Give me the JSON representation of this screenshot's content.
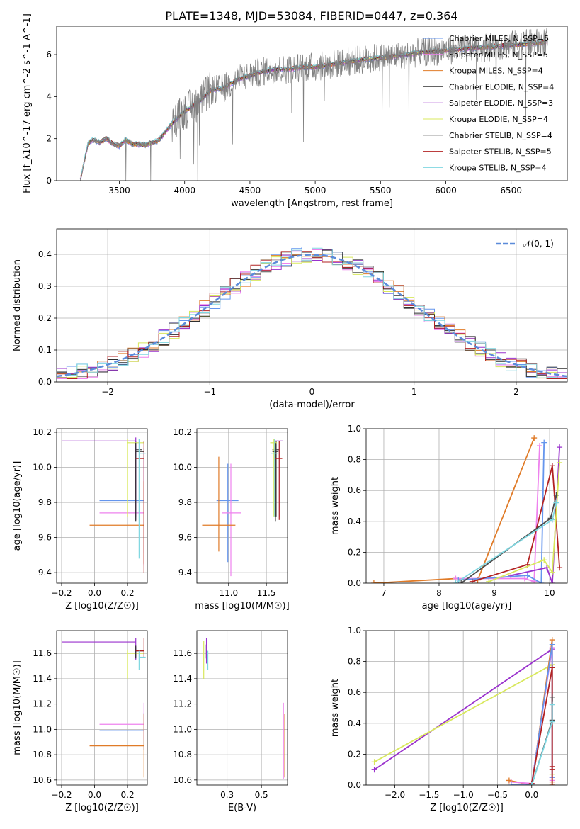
{
  "figure": {
    "title": "PLATE=1348, MJD=53084, FIBERID=0447, z=0.364"
  },
  "chart_data": [
    {
      "id": "spectrum",
      "type": "line",
      "xlabel": "wavelength [Angstrom, rest frame]",
      "ylabel": "Flux [f_λ10^-17 erg cm^-2 s^-1 A^-1]",
      "xlim": [
        3020,
        6930
      ],
      "ylim": [
        0,
        7.35
      ],
      "xticks": [
        3500,
        4000,
        4500,
        5000,
        5500,
        6000,
        6500
      ],
      "yticks": [
        0,
        2,
        4,
        6
      ],
      "data_color": "#808080",
      "data_envelope": {
        "x": [
          3200,
          3260,
          3300,
          3350,
          3400,
          3450,
          3500,
          3550,
          3600,
          3700,
          3800,
          3900,
          4000,
          4100,
          4200,
          4300,
          4400,
          4500,
          4600,
          4700,
          4800,
          4900,
          5000,
          5200,
          5400,
          5600,
          5800,
          6000,
          6200,
          6400,
          6600,
          6780
        ],
        "y": [
          0.0,
          1.75,
          1.95,
          1.8,
          2.0,
          1.75,
          1.65,
          1.95,
          1.75,
          1.7,
          1.9,
          2.7,
          3.3,
          3.7,
          4.3,
          4.4,
          4.8,
          5.0,
          5.2,
          5.3,
          5.3,
          5.4,
          5.4,
          5.6,
          5.8,
          5.9,
          6.1,
          6.2,
          6.3,
          6.4,
          6.5,
          6.6
        ]
      },
      "legend": {
        "location": "upper right",
        "items": [
          {
            "label": "Chabrier MILES, N_SSP=5",
            "color": "#6495ed"
          },
          {
            "label": "Salpeter MILES, N_SSP=5",
            "color": "#ee82ee"
          },
          {
            "label": "Kroupa MILES, N_SSP=4",
            "color": "#e07b28"
          },
          {
            "label": "Chabrier ELODIE, N_SSP=4",
            "color": "#4d4d4d"
          },
          {
            "label": "Salpeter ELODIE, N_SSP=3",
            "color": "#9a32cd"
          },
          {
            "label": "Kroupa ELODIE, N_SSP=4",
            "color": "#d8e85c"
          },
          {
            "label": "Chabrier STELIB, N_SSP=4",
            "color": "#2f2f2f"
          },
          {
            "label": "Salpeter STELIB, N_SSP=5",
            "color": "#b22222"
          },
          {
            "label": "Kroupa STELIB, N_SSP=4",
            "color": "#7ed6e0"
          }
        ]
      }
    },
    {
      "id": "residuals",
      "type": "line",
      "xlabel": "(data-model)/error",
      "ylabel": "Normed distribution",
      "xlim": [
        -2.5,
        2.5
      ],
      "ylim": [
        0,
        0.48
      ],
      "xticks": [
        -2,
        -1,
        0,
        1,
        2
      ],
      "yticks": [
        0.0,
        0.1,
        0.2,
        0.3,
        0.4
      ],
      "grid": true,
      "legend": {
        "location": "upper right",
        "items": [
          {
            "label": "𝒩(0, 1)",
            "color": "#5b8bd9",
            "dashed": true
          }
        ]
      },
      "reference_curve": "normal(0,1)",
      "hist_bin_width": 0.1,
      "hist_series_colors": [
        "#6495ed",
        "#ee82ee",
        "#e07b28",
        "#4d4d4d",
        "#9a32cd",
        "#d8e85c",
        "#2f2f2f",
        "#b22222",
        "#7ed6e0"
      ]
    },
    {
      "id": "age_vs_Z",
      "type": "scatter",
      "xlabel": "Z [log10(Z/Z☉)]",
      "ylabel": "age [log10(age/yr)]",
      "xlim": [
        -0.23,
        0.32
      ],
      "ylim": [
        9.34,
        10.22
      ],
      "xticks": [
        -0.2,
        0.0,
        0.2
      ],
      "yticks": [
        9.4,
        9.6,
        9.8,
        10.0,
        10.2
      ],
      "grid": true,
      "points": [
        {
          "x": 0.3,
          "y": 9.81,
          "xerr": [
            0.27,
            0.0
          ],
          "yerr": [
            0.3,
            0.3
          ],
          "color": "#6495ed"
        },
        {
          "x": 0.3,
          "y": 9.74,
          "xerr": [
            0.27,
            0.0
          ],
          "yerr": [
            0.3,
            0.3
          ],
          "color": "#ee82ee"
        },
        {
          "x": 0.3,
          "y": 9.67,
          "xerr": [
            0.33,
            0.0
          ],
          "yerr": [
            0.22,
            0.25
          ],
          "color": "#e07b28"
        },
        {
          "x": 0.25,
          "y": 10.1,
          "xerr": [
            0.0,
            0.04
          ],
          "yerr": [
            0.38,
            0.05
          ],
          "color": "#4d4d4d"
        },
        {
          "x": 0.25,
          "y": 10.15,
          "xerr": [
            0.45,
            0.0
          ],
          "yerr": [
            0.45,
            0.02
          ],
          "color": "#9a32cd"
        },
        {
          "x": 0.2,
          "y": 10.14,
          "xerr": [
            0.0,
            0.1
          ],
          "yerr": [
            0.42,
            0.02
          ],
          "color": "#d8e85c"
        },
        {
          "x": 0.25,
          "y": 10.09,
          "xerr": [
            0.0,
            0.05
          ],
          "yerr": [
            0.4,
            0.05
          ],
          "color": "#2f2f2f"
        },
        {
          "x": 0.3,
          "y": 10.05,
          "xerr": [
            0.05,
            0.0
          ],
          "yerr": [
            0.65,
            0.1
          ],
          "color": "#b22222"
        },
        {
          "x": 0.27,
          "y": 10.08,
          "xerr": [
            0.0,
            0.04
          ],
          "yerr": [
            0.6,
            0.08
          ],
          "color": "#7ed6e0"
        }
      ]
    },
    {
      "id": "age_vs_mass",
      "type": "scatter",
      "xlabel": "mass [log10(M/M☉)]",
      "ylabel": "",
      "xlim": [
        10.58,
        11.78
      ],
      "ylim": [
        9.34,
        10.22
      ],
      "xticks": [
        11.0,
        11.5
      ],
      "yticks": [
        9.4,
        9.6,
        9.8,
        10.0,
        10.2
      ],
      "grid": true,
      "points": [
        {
          "x": 10.99,
          "y": 9.81,
          "xerr": [
            0.15,
            0.14
          ],
          "yerr": [
            0.35,
            0.21
          ],
          "color": "#6495ed"
        },
        {
          "x": 11.03,
          "y": 9.74,
          "xerr": [
            0.12,
            0.14
          ],
          "yerr": [
            0.36,
            0.28
          ],
          "color": "#ee82ee"
        },
        {
          "x": 10.87,
          "y": 9.67,
          "xerr": [
            0.22,
            0.22
          ],
          "yerr": [
            0.15,
            0.39
          ],
          "color": "#e07b28"
        },
        {
          "x": 11.63,
          "y": 10.1,
          "xerr": [
            0.05,
            0.04
          ],
          "yerr": [
            0.38,
            0.05
          ],
          "color": "#4d4d4d"
        },
        {
          "x": 11.68,
          "y": 10.15,
          "xerr": [
            0.06,
            0.04
          ],
          "yerr": [
            0.43,
            0.0
          ],
          "color": "#9a32cd"
        },
        {
          "x": 11.6,
          "y": 10.14,
          "xerr": [
            0.05,
            0.04
          ],
          "yerr": [
            0.42,
            0.02
          ],
          "color": "#d8e85c"
        },
        {
          "x": 11.62,
          "y": 10.09,
          "xerr": [
            0.04,
            0.04
          ],
          "yerr": [
            0.4,
            0.05
          ],
          "color": "#2f2f2f"
        },
        {
          "x": 11.67,
          "y": 10.05,
          "xerr": [
            0.05,
            0.04
          ],
          "yerr": [
            0.35,
            0.1
          ],
          "color": "#b22222"
        },
        {
          "x": 11.61,
          "y": 10.08,
          "xerr": [
            0.05,
            0.04
          ],
          "yerr": [
            0.36,
            0.08
          ],
          "color": "#7ed6e0"
        }
      ]
    },
    {
      "id": "weight_vs_age",
      "type": "line",
      "xlabel": "age [log10(age/yr)]",
      "ylabel": "mass weight",
      "xlim": [
        6.68,
        10.32
      ],
      "ylim": [
        0,
        1.0
      ],
      "xticks": [
        7,
        8,
        9,
        10
      ],
      "yticks": [
        0.0,
        0.2,
        0.4,
        0.6,
        0.8,
        1.0
      ],
      "grid": true,
      "series": [
        {
          "color": "#e07b28",
          "x": [
            6.82,
            8.3,
            8.7,
            9.72
          ],
          "y": [
            0.0,
            0.03,
            0.02,
            0.94
          ]
        },
        {
          "color": "#ee82ee",
          "x": [
            8.3,
            9.55,
            9.72,
            9.82
          ],
          "y": [
            0.03,
            0.03,
            0.01,
            0.89
          ]
        },
        {
          "color": "#6495ed",
          "x": [
            8.35,
            9.6,
            9.85,
            9.9
          ],
          "y": [
            0.02,
            0.05,
            0.0,
            0.91
          ]
        },
        {
          "color": "#9a32cd",
          "x": [
            9.3,
            9.95,
            10.05,
            10.18
          ],
          "y": [
            0.05,
            0.1,
            0.0,
            0.88
          ]
        },
        {
          "color": "#b22222",
          "x": [
            8.6,
            9.6,
            10.05,
            10.18
          ],
          "y": [
            0.01,
            0.12,
            0.76,
            0.1
          ]
        },
        {
          "color": "#d8e85c",
          "x": [
            8.9,
            9.9,
            10.05,
            10.18
          ],
          "y": [
            0.01,
            0.15,
            0.07,
            0.78
          ]
        },
        {
          "color": "#4d4d4d",
          "x": [
            8.4,
            10.02,
            10.12
          ],
          "y": [
            0.0,
            0.42,
            0.57
          ]
        },
        {
          "color": "#7ed6e0",
          "x": [
            8.3,
            10.05,
            10.12
          ],
          "y": [
            0.0,
            0.41,
            0.52
          ]
        }
      ]
    },
    {
      "id": "mass_vs_Z",
      "type": "scatter",
      "xlabel": "Z [log10(Z/Z☉)]",
      "ylabel": "mass [log10(M/M☉)]",
      "xlim": [
        -0.23,
        0.32
      ],
      "ylim": [
        10.56,
        11.78
      ],
      "xticks": [
        -0.2,
        0.0,
        0.2
      ],
      "yticks": [
        10.6,
        10.8,
        11.0,
        11.2,
        11.4,
        11.6
      ],
      "grid": true,
      "points": [
        {
          "x": 0.3,
          "y": 10.99,
          "xerr": [
            0.27,
            0.0
          ],
          "yerr": [
            0.15,
            0.14
          ],
          "color": "#6495ed"
        },
        {
          "x": 0.3,
          "y": 11.04,
          "xerr": [
            0.27,
            0.0
          ],
          "yerr": [
            0.12,
            0.17
          ],
          "color": "#ee82ee"
        },
        {
          "x": 0.3,
          "y": 10.87,
          "xerr": [
            0.33,
            0.0
          ],
          "yerr": [
            0.25,
            0.25
          ],
          "color": "#e07b28"
        },
        {
          "x": 0.25,
          "y": 11.62,
          "xerr": [
            0.0,
            0.05
          ],
          "yerr": [
            0.05,
            0.03
          ],
          "color": "#4d4d4d"
        },
        {
          "x": 0.25,
          "y": 11.69,
          "xerr": [
            0.45,
            0.0
          ],
          "yerr": [
            0.14,
            0.03
          ],
          "color": "#9a32cd"
        },
        {
          "x": 0.2,
          "y": 11.6,
          "xerr": [
            0.0,
            0.1
          ],
          "yerr": [
            0.2,
            0.03
          ],
          "color": "#d8e85c"
        },
        {
          "x": 0.25,
          "y": 11.62,
          "xerr": [
            0.0,
            0.05
          ],
          "yerr": [
            0.06,
            0.04
          ],
          "color": "#2f2f2f"
        },
        {
          "x": 0.3,
          "y": 11.62,
          "xerr": [
            0.05,
            0.0
          ],
          "yerr": [
            0.05,
            0.1
          ],
          "color": "#b22222"
        },
        {
          "x": 0.27,
          "y": 11.57,
          "xerr": [
            0.0,
            0.04
          ],
          "yerr": [
            0.1,
            0.05
          ],
          "color": "#7ed6e0"
        }
      ]
    },
    {
      "id": "mass_vs_ebv",
      "type": "scatter",
      "xlabel": "E(B-V)",
      "ylabel": "",
      "xlim": [
        0.03,
        0.69
      ],
      "ylim": [
        10.56,
        11.78
      ],
      "xticks": [
        0.25,
        0.5
      ],
      "yticks": [
        10.6,
        10.8,
        11.0,
        11.2,
        11.4,
        11.6
      ],
      "grid": true,
      "points": [
        {
          "x": 0.08,
          "y": 11.6,
          "xerr": [
            0,
            0
          ],
          "yerr": [
            0.2,
            0.1
          ],
          "color": "#d8e85c"
        },
        {
          "x": 0.1,
          "y": 11.62,
          "xerr": [
            0,
            0
          ],
          "yerr": [
            0.1,
            0.1
          ],
          "color": "#9a32cd"
        },
        {
          "x": 0.11,
          "y": 11.57,
          "xerr": [
            0,
            0
          ],
          "yerr": [
            0.1,
            0.05
          ],
          "color": "#7ed6e0"
        },
        {
          "x": 0.09,
          "y": 11.62,
          "xerr": [
            0,
            0
          ],
          "yerr": [
            0.06,
            0.05
          ],
          "color": "#4d4d4d"
        },
        {
          "x": 0.66,
          "y": 10.99,
          "xerr": [
            0,
            0
          ],
          "yerr": [
            0.38,
            0.22
          ],
          "color": "#ee82ee"
        },
        {
          "x": 0.67,
          "y": 10.87,
          "xerr": [
            0,
            0
          ],
          "yerr": [
            0.25,
            0.25
          ],
          "color": "#e07b28"
        }
      ]
    },
    {
      "id": "weight_vs_Z",
      "type": "line",
      "xlabel": "Z [log10(Z/Z☉)]",
      "ylabel": "mass weight",
      "xlim": [
        -2.42,
        0.52
      ],
      "ylim": [
        0,
        1.0
      ],
      "xticks": [
        -2.0,
        -1.5,
        -1.0,
        -0.5,
        0.0
      ],
      "yticks": [
        0.0,
        0.2,
        0.4,
        0.6,
        0.8,
        1.0
      ],
      "grid": true,
      "series": [
        {
          "color": "#9a32cd",
          "x": [
            -2.3,
            0.3,
            0.3
          ],
          "y": [
            0.1,
            0.88,
            0.05
          ],
          "marker": "+"
        },
        {
          "color": "#d8e85c",
          "x": [
            -2.3,
            0.3,
            0.3,
            0.3
          ],
          "y": [
            0.15,
            0.78,
            0.07,
            0.0
          ],
          "marker": "+"
        },
        {
          "color": "#e07b28",
          "x": [
            -0.33,
            0.0,
            0.3,
            0.3
          ],
          "y": [
            0.03,
            0.0,
            0.94,
            0.02
          ],
          "marker": "+"
        },
        {
          "color": "#ee82ee",
          "x": [
            -0.3,
            0.0,
            0.3,
            0.3
          ],
          "y": [
            0.02,
            0.01,
            0.89,
            0.03
          ],
          "marker": "+"
        },
        {
          "color": "#6495ed",
          "x": [
            -0.3,
            0.0,
            0.3,
            0.3
          ],
          "y": [
            0.0,
            0.0,
            0.91,
            0.05
          ],
          "marker": "+"
        },
        {
          "color": "#b22222",
          "x": [
            0.0,
            0.3,
            0.3,
            0.3,
            0.3
          ],
          "y": [
            0.01,
            0.76,
            0.1,
            0.12,
            0.0
          ],
          "marker": "+"
        },
        {
          "color": "#4d4d4d",
          "x": [
            0.0,
            0.3,
            0.3
          ],
          "y": [
            0.0,
            0.42,
            0.57
          ],
          "marker": "+"
        },
        {
          "color": "#7ed6e0",
          "x": [
            0.0,
            0.3,
            0.3
          ],
          "y": [
            0.0,
            0.41,
            0.52
          ],
          "marker": "+"
        }
      ]
    }
  ]
}
